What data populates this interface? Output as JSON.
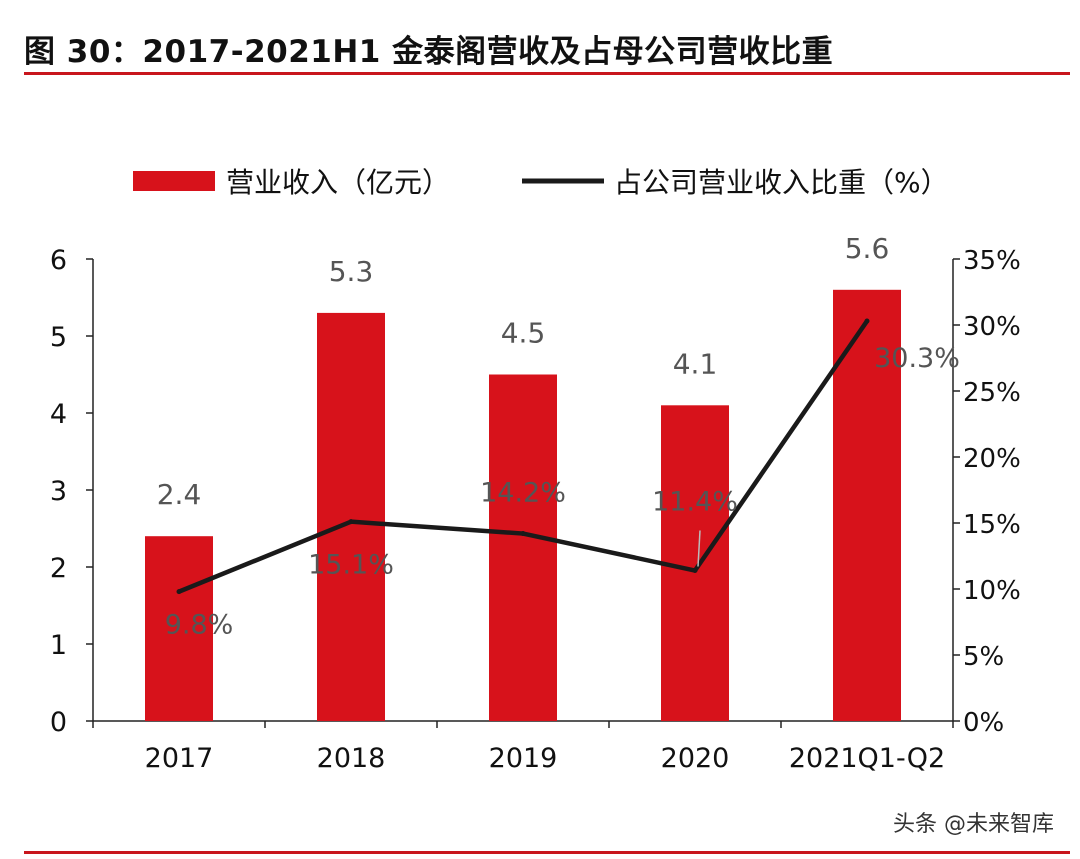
{
  "title": "图 30：2017-2021H1 金泰阁营收及占母公司营收比重",
  "watermark": {
    "text": "头条 @未来智库"
  },
  "colors": {
    "bar": "#d7121b",
    "line": "#1a1a1a",
    "rule": "#c8161d",
    "label": "#555555"
  },
  "chart_data": {
    "type": "bar",
    "categories": [
      "2017",
      "2018",
      "2019",
      "2020",
      "2021Q1-Q2"
    ],
    "series": [
      {
        "name": "营业收入（亿元）",
        "type": "bar",
        "axis": "left",
        "values": [
          2.4,
          5.3,
          4.5,
          4.1,
          5.6
        ],
        "labels": [
          "2.4",
          "5.3",
          "4.5",
          "4.1",
          "5.6"
        ]
      },
      {
        "name": "占公司营业收入比重（%）",
        "type": "line",
        "axis": "right",
        "values": [
          9.8,
          15.1,
          14.2,
          11.4,
          30.3
        ],
        "labels": [
          "9.8%",
          "15.1%",
          "14.2%",
          "11.4%",
          "30.3%"
        ]
      }
    ],
    "y_left": {
      "min": 0,
      "max": 6,
      "ticks": [
        "0",
        "1",
        "2",
        "3",
        "4",
        "5",
        "6"
      ]
    },
    "y_right": {
      "min": 0,
      "max": 35,
      "ticks": [
        "0%",
        "5%",
        "10%",
        "15%",
        "20%",
        "25%",
        "30%",
        "35%"
      ]
    },
    "legend": {
      "position": "top"
    },
    "grid": false
  }
}
